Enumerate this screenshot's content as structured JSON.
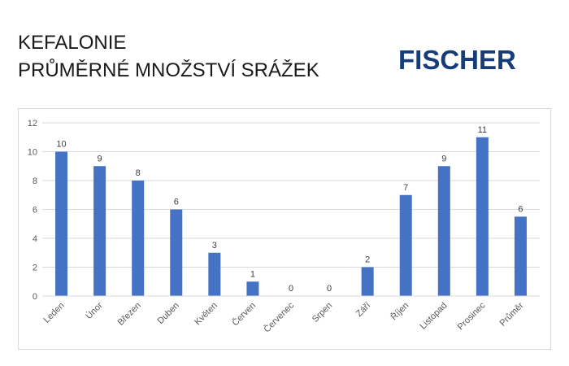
{
  "header": {
    "title_line1": "KEFALONIE",
    "title_line2": "PRŮMĚRNÉ MNOŽSTVÍ SRÁŽEK",
    "brand": "FISCHER"
  },
  "colors": {
    "bar": "#4472c4",
    "grid": "#d9d9d9",
    "axis_text": "#595959",
    "label_text": "#404040",
    "brand": "#163d7a"
  },
  "chart_data": {
    "type": "bar",
    "title": "",
    "xlabel": "",
    "ylabel": "",
    "grid": true,
    "legend": "none",
    "ylim": [
      0,
      12
    ],
    "yticks": [
      0,
      2,
      4,
      6,
      8,
      10,
      12
    ],
    "categories": [
      "Leden",
      "Únor",
      "Březen",
      "Duben",
      "Květen",
      "Červen",
      "Červenec",
      "Srpen",
      "Září",
      "Říjen",
      "Listopad",
      "Prosinec",
      "Průměr"
    ],
    "values": [
      10,
      9,
      8,
      6,
      3,
      1,
      0,
      0,
      2,
      7,
      9,
      11,
      5.5
    ],
    "data_labels": [
      "10",
      "9",
      "8",
      "6",
      "3",
      "1",
      "0",
      "0",
      "2",
      "7",
      "9",
      "11",
      "6"
    ]
  }
}
